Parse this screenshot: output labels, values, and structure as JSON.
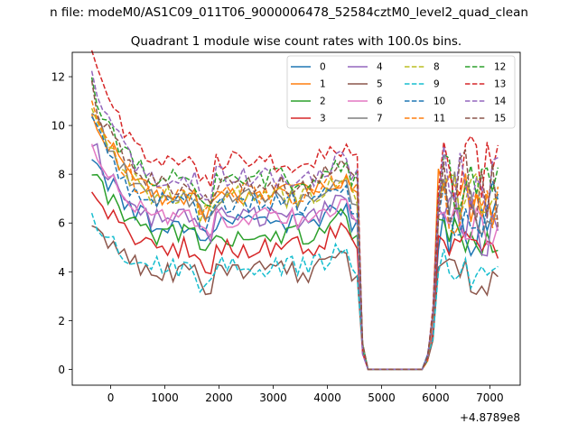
{
  "chart_data": {
    "type": "line",
    "suptitle": "n file: modeM0/AS1C09_011T06_9000006478_52584cztM0_level2_quad_clean",
    "title": "Quadrant 1 module wise count rates with 100.0s bins.",
    "xlabel": "",
    "ylabel": "",
    "x_offset_label": "+4.8789e8",
    "xlim": [
      -710,
      7560
    ],
    "ylim": [
      -0.65,
      13.0
    ],
    "xticks": [
      0,
      1000,
      2000,
      3000,
      4000,
      5000,
      6000,
      7000
    ],
    "yticks": [
      0,
      2,
      4,
      6,
      8,
      10,
      12
    ],
    "grid": false,
    "legend": {
      "position": "top-right",
      "columns": 4
    },
    "x_start": -350,
    "x_step": 100,
    "levels": {
      "0": 6.0,
      "1": 7.2,
      "2": 5.5,
      "3": 5.0,
      "4": 6.2,
      "5": 4.0,
      "6": 6.2,
      "7": 7.0,
      "8": 7.1,
      "9": 4.2,
      "10": 6.8,
      "11": 7.2,
      "12": 7.8,
      "13": 8.5,
      "14": 7.9,
      "15": 7.6
    },
    "series": [
      {
        "name": "0",
        "color": "#1f77b4",
        "style": "solid"
      },
      {
        "name": "1",
        "color": "#ff7f0e",
        "style": "solid"
      },
      {
        "name": "2",
        "color": "#2ca02c",
        "style": "solid"
      },
      {
        "name": "3",
        "color": "#d62728",
        "style": "solid"
      },
      {
        "name": "4",
        "color": "#9467bd",
        "style": "solid"
      },
      {
        "name": "5",
        "color": "#8c564b",
        "style": "solid"
      },
      {
        "name": "6",
        "color": "#e377c2",
        "style": "solid"
      },
      {
        "name": "7",
        "color": "#7f7f7f",
        "style": "solid"
      },
      {
        "name": "8",
        "color": "#bcbd22",
        "style": "dashed"
      },
      {
        "name": "9",
        "color": "#17becf",
        "style": "dashed"
      },
      {
        "name": "10",
        "color": "#1f77b4",
        "style": "dashed"
      },
      {
        "name": "11",
        "color": "#ff7f0e",
        "style": "dashed"
      },
      {
        "name": "12",
        "color": "#2ca02c",
        "style": "dashed"
      },
      {
        "name": "13",
        "color": "#d62728",
        "style": "dashed"
      },
      {
        "name": "14",
        "color": "#9467bd",
        "style": "dashed"
      },
      {
        "name": "15",
        "color": "#8c564b",
        "style": "dashed"
      }
    ]
  }
}
